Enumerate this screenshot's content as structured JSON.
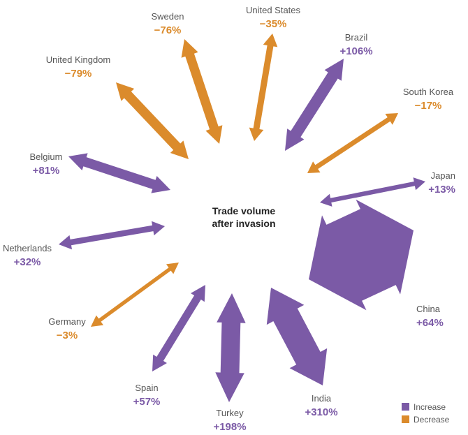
{
  "colors": {
    "increase": "#7b5aa6",
    "decrease": "#db8b2c"
  },
  "center_label": [
    "Trade volume",
    "after invasion"
  ],
  "legend": [
    {
      "label": "Increase",
      "color": "#7b5aa6"
    },
    {
      "label": "Decrease",
      "color": "#db8b2c"
    }
  ],
  "chart_data": {
    "type": "arrow-radial",
    "title": "",
    "series": [
      {
        "country": "United States",
        "change_label": "−35%",
        "change_pct": -35,
        "direction": "decrease"
      },
      {
        "country": "Brazil",
        "change_label": "+106%",
        "change_pct": 106,
        "direction": "increase"
      },
      {
        "country": "South Korea",
        "change_label": "−17%",
        "change_pct": -17,
        "direction": "decrease"
      },
      {
        "country": "Japan",
        "change_label": "+13%",
        "change_pct": 13,
        "direction": "increase"
      },
      {
        "country": "China",
        "change_label": "+64%",
        "change_pct": 64,
        "direction": "increase"
      },
      {
        "country": "India",
        "change_label": "+310%",
        "change_pct": 310,
        "direction": "increase"
      },
      {
        "country": "Turkey",
        "change_label": "+198%",
        "change_pct": 198,
        "direction": "increase"
      },
      {
        "country": "Spain",
        "change_label": "+57%",
        "change_pct": 57,
        "direction": "increase"
      },
      {
        "country": "Germany",
        "change_label": "−3%",
        "change_pct": -3,
        "direction": "decrease"
      },
      {
        "country": "Netherlands",
        "change_label": "+32%",
        "change_pct": 32,
        "direction": "increase"
      },
      {
        "country": "Belgium",
        "change_label": "+81%",
        "change_pct": 81,
        "direction": "increase"
      },
      {
        "country": "United Kingdom",
        "change_label": "−79%",
        "change_pct": -79,
        "direction": "decrease"
      },
      {
        "country": "Sweden",
        "change_label": "−76%",
        "change_pct": -76,
        "direction": "decrease"
      }
    ]
  }
}
